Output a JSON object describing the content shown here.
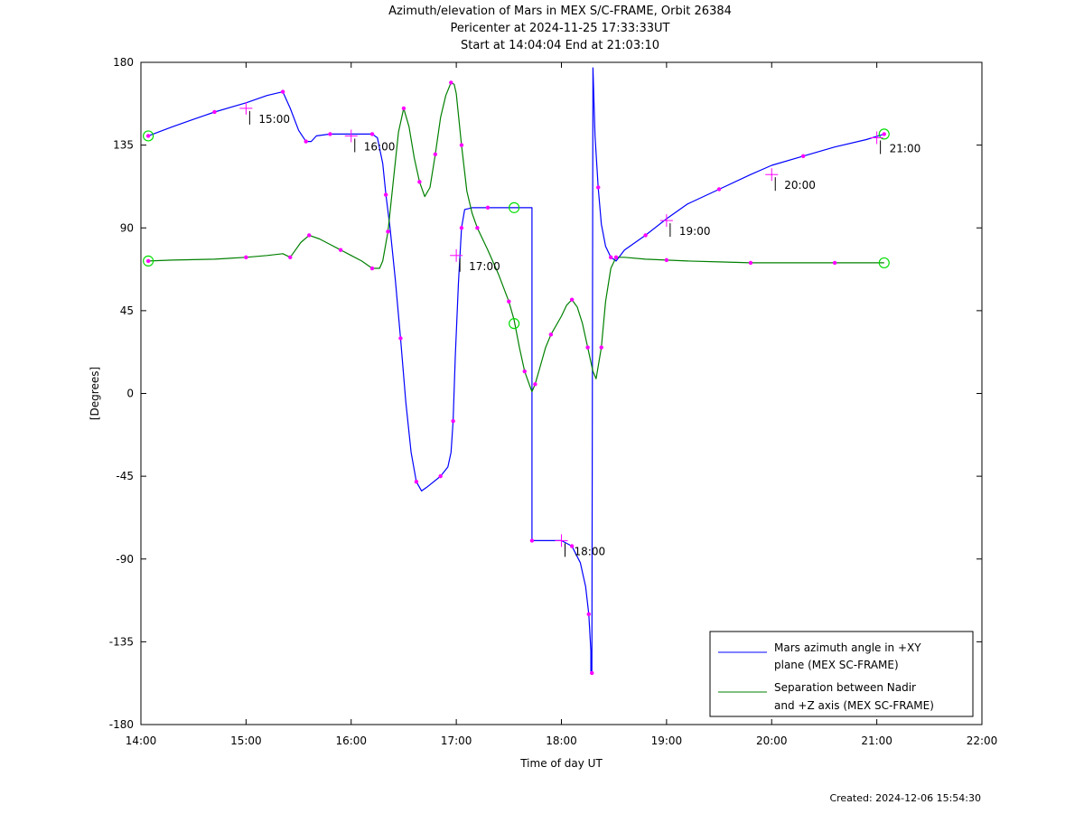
{
  "header": {
    "title": "Azimuth/elevation of Mars in MEX S/C-FRAME,  Orbit 26384",
    "pericenter": "Pericenter at 2024-11-25 17:33:33UT",
    "start_end": "Start at 14:04:04 End at 21:03:10"
  },
  "footer": {
    "created": "Created: 2024-12-06 15:54:30"
  },
  "chart_data": {
    "type": "line",
    "xlabel": "Time of day UT",
    "ylabel": "[Degrees]",
    "xlim": [
      14.0,
      22.0
    ],
    "ylim": [
      -180,
      180
    ],
    "x_ticks": [
      14,
      15,
      16,
      17,
      18,
      19,
      20,
      21,
      22
    ],
    "x_tick_labels": [
      "14:00",
      "15:00",
      "16:00",
      "17:00",
      "18:00",
      "19:00",
      "20:00",
      "21:00",
      "22:00"
    ],
    "y_ticks": [
      -180,
      -135,
      -90,
      -45,
      0,
      45,
      90,
      135,
      180
    ],
    "y_tick_labels": [
      "-180",
      "-135",
      "-90",
      "-45",
      "0",
      "45",
      "90",
      "135",
      "180"
    ],
    "grid": false,
    "legend_position": "bottom-right",
    "colors": {
      "azimuth": "#0000ff",
      "separation": "#008000",
      "markers": "#ff00ff",
      "endpoints": "#00dd00"
    },
    "series": [
      {
        "name": "Mars azimuth angle in +XY plane (MEX SC-FRAME)",
        "legend_lines": [
          "Mars azimuth angle in +XY",
          "plane (MEX SC-FRAME)"
        ],
        "color": "#0000ff",
        "x": [
          14.07,
          14.3,
          14.5,
          14.7,
          15.0,
          15.2,
          15.35,
          15.42,
          15.5,
          15.57,
          15.62,
          15.67,
          15.8,
          16.0,
          16.1,
          16.2,
          16.25,
          16.3,
          16.33,
          16.37,
          16.42,
          16.47,
          16.52,
          16.57,
          16.62,
          16.67,
          16.72,
          16.85,
          16.92,
          16.95,
          16.97,
          16.99,
          17.02,
          17.05,
          17.08,
          17.15,
          17.3,
          17.5,
          17.72,
          17.72,
          17.78,
          18.0,
          18.1,
          18.18,
          18.23,
          18.26,
          18.28,
          18.28,
          18.29,
          18.3,
          18.32,
          18.35,
          18.38,
          18.42,
          18.47,
          18.52,
          18.6,
          18.8,
          19.0,
          19.2,
          19.5,
          19.8,
          20.0,
          20.3,
          20.6,
          20.9,
          21.07
        ],
        "y": [
          140,
          145,
          149,
          153,
          158,
          162,
          164,
          155,
          143,
          137,
          137,
          140,
          141,
          141,
          141,
          141,
          139,
          125,
          108,
          90,
          62,
          30,
          -5,
          -32,
          -48,
          -53,
          -51,
          -45,
          -40,
          -32,
          -15,
          20,
          60,
          90,
          100,
          101,
          101,
          101,
          101,
          -80,
          -80,
          -80,
          -83,
          -92,
          -105,
          -120,
          -140,
          -152,
          -152,
          177,
          140,
          112,
          92,
          80,
          74,
          72,
          78,
          86,
          95,
          103,
          111,
          119,
          124,
          129,
          134,
          138,
          141
        ]
      },
      {
        "name": "Separation between Nadir and +Z axis (MEX SC-FRAME)",
        "legend_lines": [
          "Separation between Nadir",
          "and +Z axis (MEX SC-FRAME)"
        ],
        "color": "#008000",
        "x": [
          14.07,
          14.3,
          14.7,
          15.0,
          15.2,
          15.35,
          15.42,
          15.47,
          15.52,
          15.6,
          15.7,
          15.8,
          15.9,
          16.0,
          16.1,
          16.2,
          16.27,
          16.3,
          16.35,
          16.4,
          16.45,
          16.5,
          16.55,
          16.6,
          16.65,
          16.7,
          16.75,
          16.8,
          16.85,
          16.9,
          16.95,
          16.98,
          17.0,
          17.05,
          17.1,
          17.15,
          17.2,
          17.3,
          17.4,
          17.5,
          17.55,
          17.6,
          17.65,
          17.7,
          17.72,
          17.75,
          17.8,
          17.85,
          17.9,
          18.0,
          18.05,
          18.1,
          18.15,
          18.2,
          18.25,
          18.3,
          18.33,
          18.38,
          18.42,
          18.47,
          18.52,
          18.6,
          18.8,
          19.0,
          19.2,
          19.5,
          19.8,
          20.0,
          20.3,
          20.6,
          20.9,
          21.07
        ],
        "y": [
          72,
          72.5,
          73,
          74,
          75,
          76,
          74,
          78,
          82,
          86,
          84,
          81,
          78,
          75,
          72,
          68,
          68,
          72,
          88,
          115,
          142,
          155,
          145,
          128,
          115,
          107,
          112,
          130,
          150,
          162,
          169,
          168,
          163,
          135,
          110,
          98,
          90,
          78,
          65,
          50,
          40,
          25,
          12,
          4,
          1,
          5,
          15,
          25,
          32,
          42,
          48,
          51,
          47,
          38,
          25,
          12,
          8,
          25,
          50,
          68,
          74,
          74,
          73,
          72.5,
          72,
          71.5,
          71,
          71,
          71,
          71,
          71,
          71
        ]
      }
    ],
    "time_labels": [
      {
        "x": 15.0,
        "y": 155,
        "text": "15:00"
      },
      {
        "x": 16.0,
        "y": 140,
        "text": "16:00"
      },
      {
        "x": 17.0,
        "y": 75,
        "text": "17:00"
      },
      {
        "x": 18.0,
        "y": -80,
        "text": "18:00"
      },
      {
        "x": 19.0,
        "y": 94,
        "text": "19:00"
      },
      {
        "x": 20.0,
        "y": 119,
        "text": "20:00"
      },
      {
        "x": 21.0,
        "y": 139,
        "text": "21:00"
      }
    ],
    "endpoint_circles": [
      {
        "x": 14.07,
        "y": 140
      },
      {
        "x": 14.07,
        "y": 72
      },
      {
        "x": 17.55,
        "y": 101
      },
      {
        "x": 17.55,
        "y": 38
      },
      {
        "x": 21.07,
        "y": 141
      },
      {
        "x": 21.07,
        "y": 71
      }
    ]
  }
}
